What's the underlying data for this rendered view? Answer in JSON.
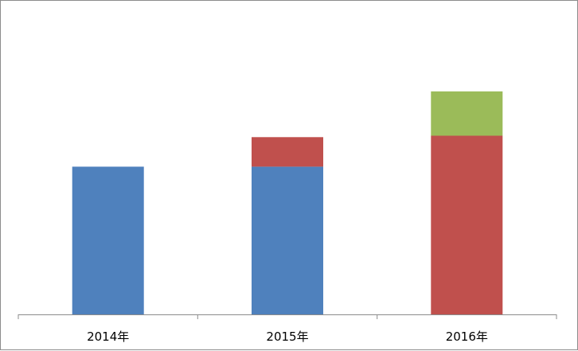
{
  "chart_data": {
    "type": "bar",
    "stacked": true,
    "categories": [
      "2014年",
      "2015年",
      "2016年"
    ],
    "series": [
      {
        "values": [
          100,
          100,
          0
        ],
        "color": "#4f81bd"
      },
      {
        "values": [
          0,
          20,
          121
        ],
        "color": "#c0504d"
      },
      {
        "values": [
          0,
          0,
          30
        ],
        "color": "#9bbb59"
      }
    ],
    "ylim": [
      0,
      180
    ],
    "grid": false,
    "legend": "none",
    "title": "",
    "xlabel": "",
    "ylabel": ""
  }
}
